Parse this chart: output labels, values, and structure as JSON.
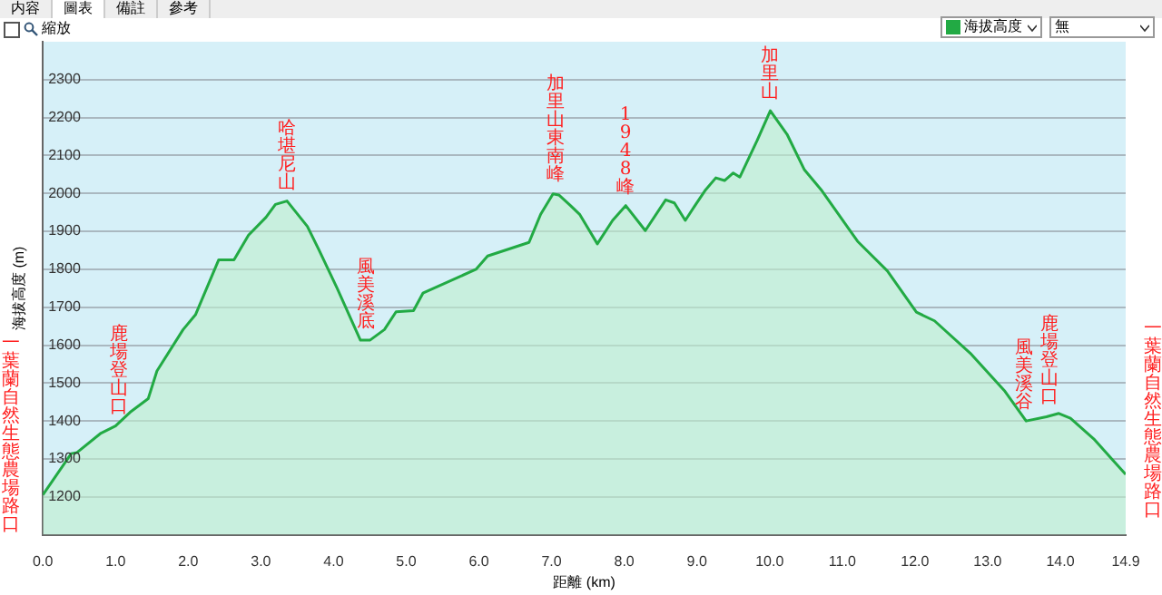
{
  "chart_data": {
    "type": "area",
    "xlabel": "距離 (km)",
    "ylabel": "海拔高度 (m)",
    "series": [
      {
        "name": "海拔高度",
        "color": "#22aa44",
        "x": [
          0,
          0.39,
          0.47,
          0.8,
          1.0,
          1.2,
          1.45,
          1.57,
          1.93,
          2.1,
          2.42,
          2.63,
          2.83,
          3.07,
          3.2,
          3.36,
          3.64,
          3.8,
          4.05,
          4.37,
          4.5,
          4.7,
          4.86,
          5.1,
          5.23,
          5.96,
          6.12,
          6.69,
          6.85,
          7.02,
          7.1,
          7.26,
          7.39,
          7.63,
          7.84,
          8.02,
          8.29,
          8.57,
          8.69,
          8.84,
          8.98,
          9.11,
          9.26,
          9.38,
          9.5,
          9.59,
          9.83,
          10.01,
          10.24,
          10.48,
          10.72,
          11.21,
          11.62,
          12.02,
          12.27,
          12.76,
          13.24,
          13.53,
          13.81,
          13.98,
          14.14,
          14.46,
          14.9
        ],
        "values": [
          1205,
          1314,
          1317,
          1368,
          1387,
          1423,
          1459,
          1532,
          1641,
          1680,
          1825,
          1825,
          1890,
          1937,
          1971,
          1980,
          1913,
          1851,
          1750,
          1613,
          1613,
          1641,
          1688,
          1691,
          1737,
          1800,
          1835,
          1871,
          1945,
          1999,
          1996,
          1968,
          1944,
          1867,
          1929,
          1968,
          1902,
          1983,
          1975,
          1929,
          1970,
          2007,
          2041,
          2034,
          2054,
          2043,
          2140,
          2218,
          2156,
          2062,
          2007,
          1874,
          1796,
          1687,
          1664,
          1579,
          1478,
          1400,
          1411,
          1420,
          1407,
          1353,
          1259
        ]
      }
    ],
    "xlim": [
      0,
      14.9
    ],
    "ylim": [
      1100,
      2400
    ],
    "xticks": [
      {
        "value": 0,
        "label": "0.0"
      },
      {
        "value": 1,
        "label": "1.0"
      },
      {
        "value": 2,
        "label": "2.0"
      },
      {
        "value": 3,
        "label": "3.0"
      },
      {
        "value": 4,
        "label": "4.0"
      },
      {
        "value": 5,
        "label": "5.0"
      },
      {
        "value": 6,
        "label": "6.0"
      },
      {
        "value": 7,
        "label": "7.0"
      },
      {
        "value": 8,
        "label": "8.0"
      },
      {
        "value": 9,
        "label": "9.0"
      },
      {
        "value": 10,
        "label": "10.0"
      },
      {
        "value": 11,
        "label": "11.0"
      },
      {
        "value": 12,
        "label": "12.0"
      },
      {
        "value": 13,
        "label": "13.0"
      },
      {
        "value": 14,
        "label": "14.0"
      },
      14.9
    ],
    "yticks": [
      1200,
      1300,
      1400,
      1500,
      1600,
      1700,
      1800,
      1900,
      2000,
      2100,
      2200,
      2300
    ],
    "grid": "y",
    "legend": "top right",
    "marker": "none",
    "annotations": [
      "内容",
      "圖表",
      "備註",
      "參考",
      "縮放",
      "無",
      "一葉蘭自然生態農場路口",
      {
        "text": "鹿場登山口",
        "x": 1.05,
        "y": 1390
      },
      {
        "text": "哈堪尼山",
        "x": 3.36,
        "y": 1980
      },
      {
        "text": "風美溪底",
        "x": 4.45,
        "y": 1613
      },
      {
        "text": "加里山東南峰",
        "x": 7.05,
        "y": 2000
      },
      {
        "text": "1948峰",
        "x": 8.02,
        "y": 1968
      },
      {
        "text": "加里山",
        "x": 10.0,
        "y": 2218
      },
      {
        "text": "風美溪谷",
        "x": 13.5,
        "y": 1400
      },
      {
        "text": "鹿場登山口",
        "x": 13.85,
        "y": 1415
      },
      "一葉蘭自然生態農場路口"
    ]
  }
}
